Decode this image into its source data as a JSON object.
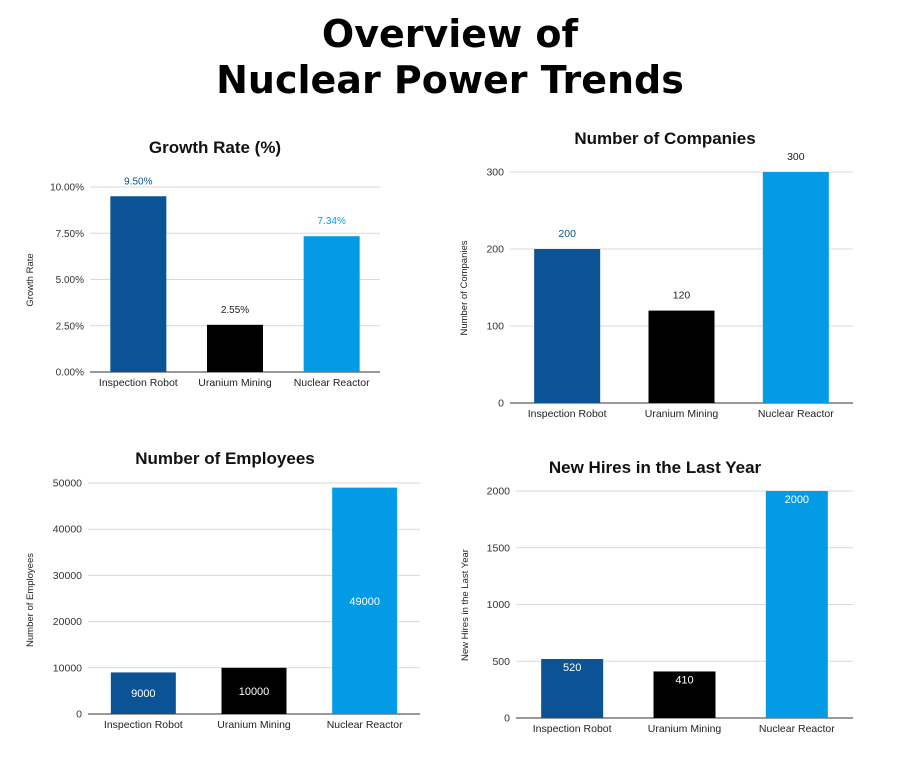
{
  "title_line1": "Overview of",
  "title_line2": "Nuclear Power Trends",
  "colors": {
    "inspection": "#0B5394",
    "uranium": "#000000",
    "reactor": "#039BE5",
    "grid": "#d9d9d9",
    "axis": "#333333"
  },
  "chart_data": [
    {
      "type": "bar",
      "title": "Growth Rate (%)",
      "ylabel": "Growth Rate",
      "xlabel": "",
      "categories": [
        "Inspection Robot",
        "Uranium Mining",
        "Nuclear Reactor"
      ],
      "values": [
        9.5,
        2.55,
        7.34
      ],
      "data_labels": [
        "9.50%",
        "2.55%",
        "7.34%"
      ],
      "label_colors": [
        "#0B5394",
        "#222222",
        "#039BE5"
      ],
      "label_position": "above",
      "ylim": [
        0,
        10
      ],
      "yticks": [
        0,
        2.5,
        5,
        7.5,
        10
      ],
      "ytick_labels": [
        "0.00%",
        "2.50%",
        "5.00%",
        "7.50%",
        "10.00%"
      ],
      "grid": true
    },
    {
      "type": "bar",
      "title": "Number of Companies",
      "ylabel": "Number of Companies",
      "xlabel": "",
      "categories": [
        "Inspection Robot",
        "Uranium Mining",
        "Nuclear Reactor"
      ],
      "values": [
        200,
        120,
        300
      ],
      "data_labels": [
        "200",
        "120",
        "300"
      ],
      "label_colors": [
        "#0B5394",
        "#222222",
        "#222222"
      ],
      "label_position": "above",
      "ylim": [
        0,
        300
      ],
      "yticks": [
        0,
        100,
        200,
        300
      ],
      "ytick_labels": [
        "0",
        "100",
        "200",
        "300"
      ],
      "grid": true
    },
    {
      "type": "bar",
      "title": "Number of Employees",
      "ylabel": "Number of Employees",
      "xlabel": "",
      "categories": [
        "Inspection Robot",
        "Uranium Mining",
        "Nuclear Reactor"
      ],
      "values": [
        9000,
        10000,
        49000
      ],
      "data_labels": [
        "9000",
        "10000",
        "49000"
      ],
      "label_colors": [
        "#ffffff",
        "#ffffff",
        "#ffffff"
      ],
      "label_position": "inside",
      "ylim": [
        0,
        50000
      ],
      "yticks": [
        0,
        10000,
        20000,
        30000,
        40000,
        50000
      ],
      "ytick_labels": [
        "0",
        "10000",
        "20000",
        "30000",
        "40000",
        "50000"
      ],
      "grid": true
    },
    {
      "type": "bar",
      "title": "New Hires in the Last Year",
      "ylabel": "New Hires in the Last Year",
      "xlabel": "",
      "categories": [
        "Inspection Robot",
        "Uranium Mining",
        "Nuclear Reactor"
      ],
      "values": [
        520,
        410,
        2000
      ],
      "data_labels": [
        "520",
        "410",
        "2000"
      ],
      "label_colors": [
        "#ffffff",
        "#ffffff",
        "#ffffff"
      ],
      "label_position": "inside-top",
      "ylim": [
        0,
        2000
      ],
      "yticks": [
        0,
        500,
        1000,
        1500,
        2000
      ],
      "ytick_labels": [
        "0",
        "500",
        "1000",
        "1500",
        "2000"
      ],
      "grid": true
    }
  ]
}
